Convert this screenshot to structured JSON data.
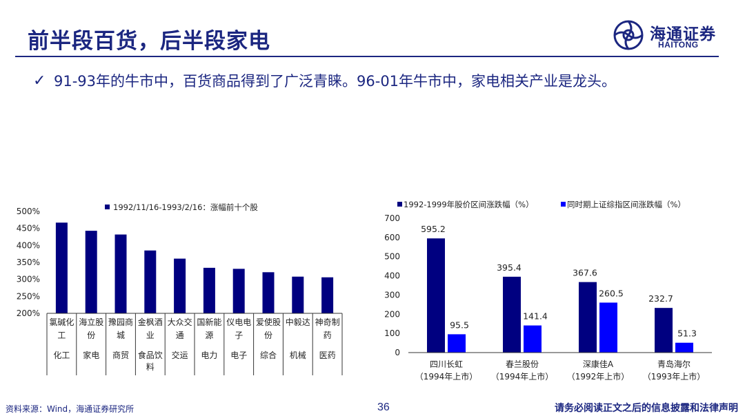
{
  "header": {
    "title": "前半段百货，后半段家电",
    "logo_cn": "海通证券",
    "logo_en": "HAITONG"
  },
  "bullet": {
    "check": "✓",
    "text": "91-93年的牛市中，百货商品得到了广泛青睐。96-01年牛市中，家电相关产业是龙头。"
  },
  "colors": {
    "navy": "#000080",
    "blue": "#0000ff",
    "text": "#1b2680"
  },
  "chart_data": [
    {
      "type": "bar",
      "legend": [
        "1992/11/16-1993/2/16：涨幅前十个股"
      ],
      "series": [
        {
          "name": "1992/11/16-1993/2/16：涨幅前十个股",
          "values": [
            467,
            443,
            432,
            385,
            361,
            334,
            331,
            321,
            308,
            306
          ]
        }
      ],
      "categories": [
        "氯碱化工",
        "海立股份",
        "豫园商城",
        "金枫酒业",
        "大众交通",
        "国新能源",
        "仪电电子",
        "爱使股份",
        "中毅达",
        "神奇制药"
      ],
      "stocks_lines": [
        [
          "氯碱化",
          "工"
        ],
        [
          "海立股",
          "份"
        ],
        [
          "豫园商",
          "城"
        ],
        [
          "金枫酒",
          "业"
        ],
        [
          "大众交",
          "通"
        ],
        [
          "国新能",
          "源"
        ],
        [
          "仪电电",
          "子"
        ],
        [
          "爱使股",
          "份"
        ],
        [
          "中毅达",
          ""
        ],
        [
          "神奇制",
          "药"
        ]
      ],
      "industries_lines": [
        [
          "化工"
        ],
        [
          "家电"
        ],
        [
          "商贸"
        ],
        [
          "食品饮",
          "料"
        ],
        [
          "交运"
        ],
        [
          "电力"
        ],
        [
          "电子"
        ],
        [
          "综合"
        ],
        [
          "机械"
        ],
        [
          "医药"
        ]
      ],
      "y_ticks": [
        "500%",
        "450%",
        "400%",
        "350%",
        "300%",
        "250%",
        "200%"
      ],
      "ylim": [
        200,
        500
      ]
    },
    {
      "type": "bar",
      "legend": [
        "1992-1999年股价区间涨跌幅（%）",
        "同时期上证综指区间涨跌幅（%）"
      ],
      "series": [
        {
          "name": "1992-1999年股价区间涨跌幅（%）",
          "values": [
            595.2,
            395.4,
            367.6,
            232.7
          ],
          "labels": [
            "595.2",
            "395.4",
            "367.6",
            "232.7"
          ]
        },
        {
          "name": "同时期上证综指区间涨跌幅（%）",
          "values": [
            95.5,
            141.4,
            260.5,
            51.3
          ],
          "labels": [
            "95.5",
            "141.4",
            "260.5",
            "51.3"
          ]
        }
      ],
      "categories": [
        "四川长虹",
        "春兰股份",
        "深康佳A",
        "青岛海尔"
      ],
      "category_sub": [
        "（1994年上市）",
        "（1994年上市）",
        "（1992年上市）",
        "（1993年上市）"
      ],
      "y_ticks": [
        "700",
        "600",
        "500",
        "400",
        "300",
        "200",
        "100",
        "0"
      ],
      "ylim": [
        0,
        700
      ]
    }
  ],
  "footer": {
    "source": "资料来源：Wind，海通证券研究所",
    "page": "36",
    "legal": "请务必阅读正文之后的信息披露和法律声明"
  }
}
